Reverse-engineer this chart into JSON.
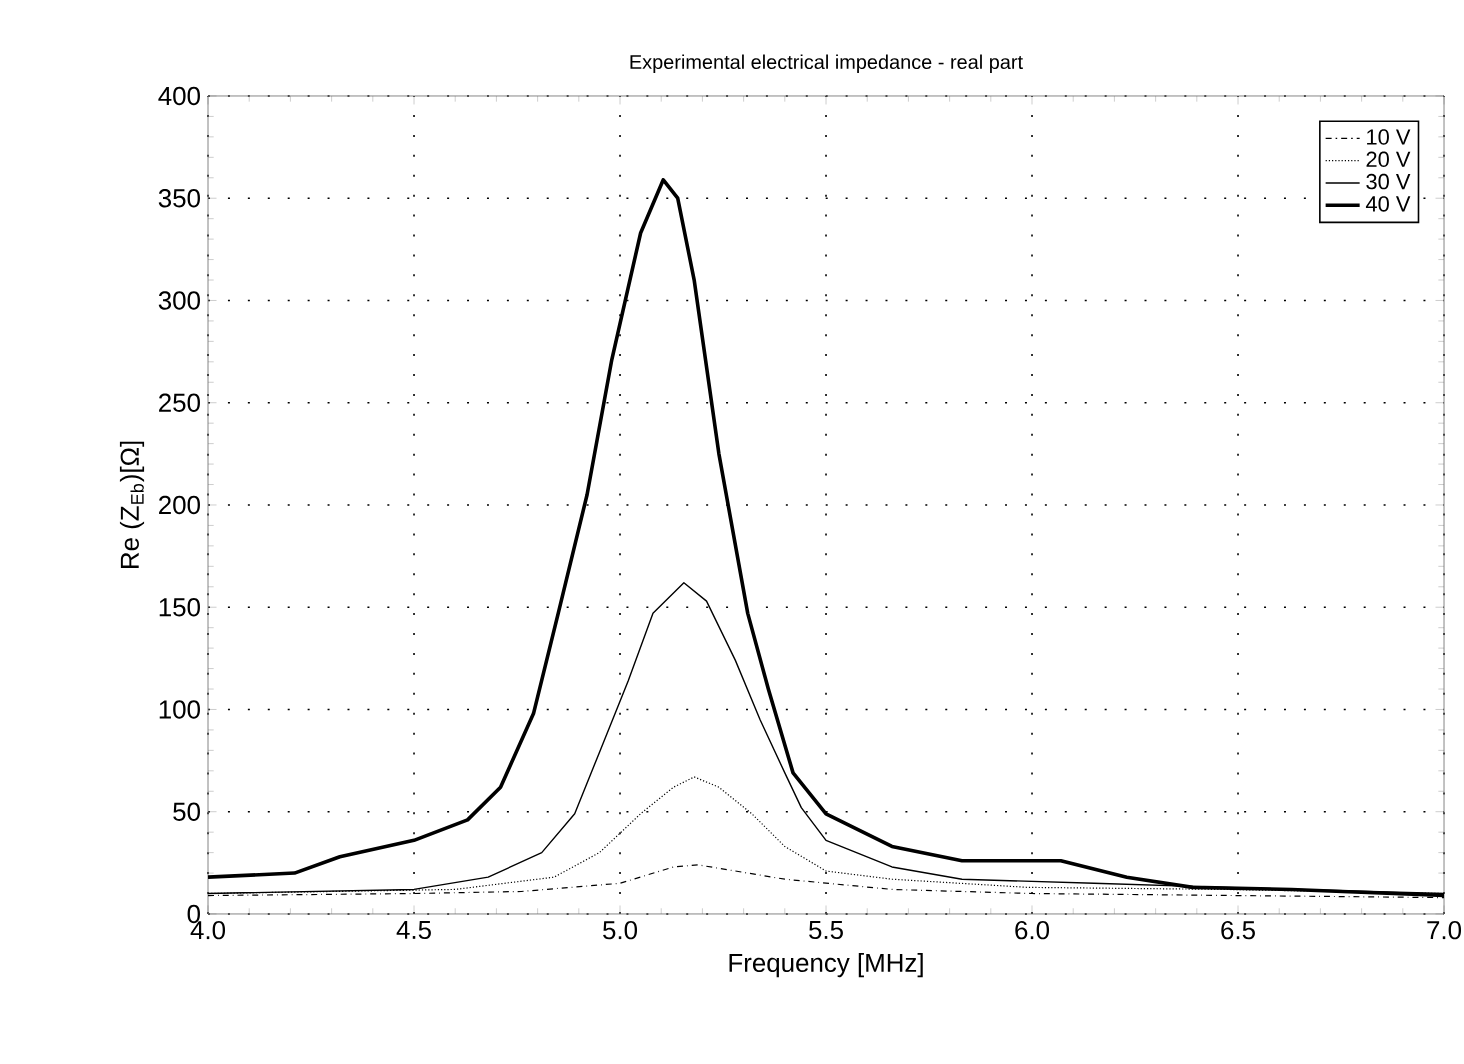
{
  "chart_data": {
    "type": "line",
    "title": "Experimental  electrical impedance - real part",
    "xlabel": "Frequency [MHz]",
    "ylabel": "Re (Z$_{Eb}$)[Ω]",
    "xlim": [
      4,
      7
    ],
    "ylim": [
      0,
      400
    ],
    "xticks": [
      {
        "value": 4,
        "label": "4.0"
      },
      {
        "value": 4.5,
        "label": "4.5"
      },
      {
        "value": 5,
        "label": "5.0"
      },
      {
        "value": 5.5,
        "label": "5.5"
      },
      {
        "value": 6,
        "label": "6.0"
      },
      {
        "value": 6.5,
        "label": "6.5"
      },
      {
        "value": 7,
        "label": "7.0"
      }
    ],
    "yticks": [
      0,
      50,
      100,
      150,
      200,
      250,
      300,
      350,
      400
    ],
    "grid": true,
    "legend": "top right",
    "marker": "none",
    "series": [
      {
        "name": "10 V",
        "color": "#000000",
        "line_style": "dashdot",
        "x": [
          4.0,
          4.5,
          4.76,
          5.0,
          5.13,
          5.19,
          5.28,
          5.4,
          5.66,
          6.0,
          6.5,
          7.0
        ],
        "values": [
          9,
          10,
          11,
          15,
          23,
          24,
          21,
          17,
          12,
          10,
          9,
          8
        ]
      },
      {
        "name": "20 V",
        "color": "#000000",
        "line_style": "dotted",
        "x": [
          4.0,
          4.6,
          4.84,
          4.95,
          5.05,
          5.13,
          5.18,
          5.24,
          5.32,
          5.4,
          5.5,
          5.66,
          5.99,
          6.47,
          7.0
        ],
        "values": [
          10,
          12,
          18,
          30,
          49,
          62,
          67,
          62,
          49,
          33,
          21,
          17,
          13,
          12,
          10
        ]
      },
      {
        "name": "30 V",
        "color": "#000000",
        "line_style": "solid",
        "x": [
          4.0,
          4.5,
          4.68,
          4.81,
          4.89,
          4.95,
          5.02,
          5.08,
          5.155,
          5.21,
          5.28,
          5.34,
          5.4,
          5.44,
          5.5,
          5.66,
          5.83,
          6.15,
          6.47,
          7.0
        ],
        "values": [
          10,
          12,
          18,
          30,
          49,
          79,
          114,
          147,
          162,
          153,
          124,
          95,
          69,
          52,
          36,
          23,
          17,
          15,
          13,
          10
        ]
      },
      {
        "name": "40 V",
        "color": "#000000",
        "line_style": "solid",
        "x": [
          4.0,
          4.21,
          4.32,
          4.5,
          4.63,
          4.71,
          4.79,
          4.85,
          4.92,
          4.98,
          5.05,
          5.105,
          5.14,
          5.18,
          5.24,
          5.31,
          5.36,
          5.42,
          5.5,
          5.66,
          5.83,
          6.07,
          6.23,
          6.39,
          6.63,
          7.0
        ],
        "values": [
          18,
          20,
          28,
          36,
          46,
          62,
          98,
          147,
          205,
          271,
          333,
          359,
          350,
          310,
          225,
          147,
          110,
          69,
          49,
          33,
          26,
          26,
          18,
          13,
          12,
          9
        ]
      }
    ]
  }
}
